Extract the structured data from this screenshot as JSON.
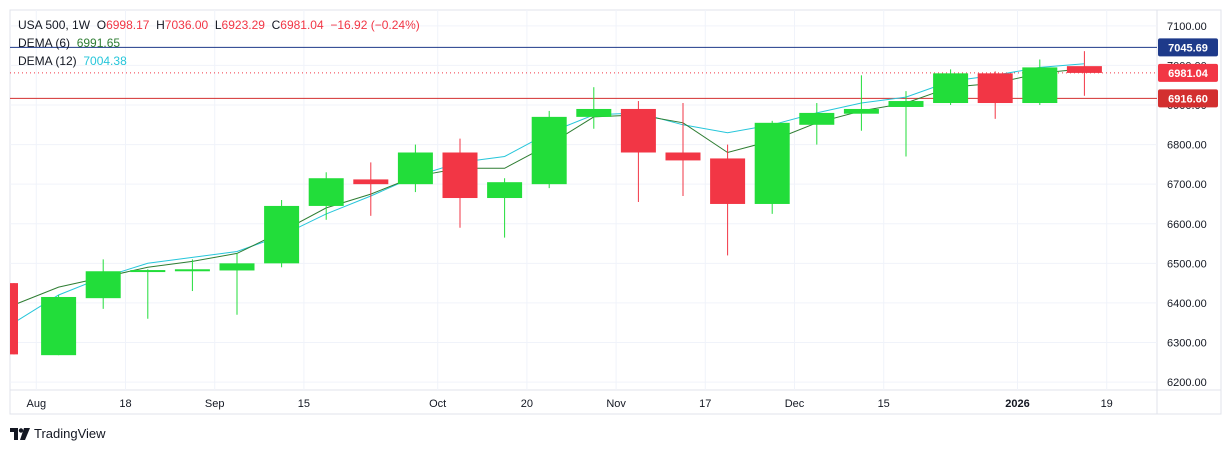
{
  "header": {
    "symbol": "USA 500",
    "interval": "1W",
    "open_label": "O",
    "open": "6998.17",
    "high_label": "H",
    "high": "7036.00",
    "low_label": "L",
    "low": "6923.29",
    "close_label": "C",
    "close": "6981.04",
    "change": "−16.92 (−0.24%)"
  },
  "indicators": [
    {
      "name": "DEMA (6)",
      "value": "6991.65",
      "color": "#2e7d32"
    },
    {
      "name": "DEMA (12)",
      "value": "7004.38",
      "color": "#26c6da"
    }
  ],
  "brand": "TradingView",
  "colors": {
    "up": "#22dd3a",
    "down": "#f23645",
    "blue_line": "#1e3a8a",
    "red_line": "#d32f2f"
  },
  "chart_data": {
    "type": "candlestick",
    "y_ticks": [
      "6200.00",
      "6300.00",
      "6400.00",
      "6500.00",
      "6600.00",
      "6700.00",
      "6800.00",
      "6900.00",
      "7000.00",
      "7100.00"
    ],
    "x_ticks": [
      {
        "label": "Aug",
        "index": 0.5
      },
      {
        "label": "18",
        "index": 2.5
      },
      {
        "label": "Sep",
        "index": 4.5
      },
      {
        "label": "15",
        "index": 6.5
      },
      {
        "label": "Oct",
        "index": 9.5
      },
      {
        "label": "20",
        "index": 11.5
      },
      {
        "label": "Nov",
        "index": 13.5
      },
      {
        "label": "17",
        "index": 15.5
      },
      {
        "label": "Dec",
        "index": 17.5
      },
      {
        "label": "15",
        "index": 19.5
      },
      {
        "label": "2026",
        "index": 22.5,
        "bold": true
      },
      {
        "label": "19",
        "index": 24.5
      }
    ],
    "ylim": [
      6180,
      7140
    ],
    "price_tags": [
      {
        "value": 7045.69,
        "label": "7045.69",
        "color": "#1e3a8a",
        "style": "solid"
      },
      {
        "value": 6981.04,
        "label": "6981.04",
        "color": "#f23645",
        "style": "dotted"
      },
      {
        "value": 6916.6,
        "label": "6916.60",
        "color": "#d32f2f",
        "style": "solid"
      }
    ],
    "candles": [
      {
        "o": 6450,
        "h": 6450,
        "l": 6270,
        "c": 6270
      },
      {
        "o": 6268,
        "h": 6420,
        "l": 6268,
        "c": 6415
      },
      {
        "o": 6412,
        "h": 6510,
        "l": 6385,
        "c": 6480
      },
      {
        "o": 6478,
        "h": 6485,
        "l": 6360,
        "c": 6483
      },
      {
        "o": 6480,
        "h": 6510,
        "l": 6430,
        "c": 6485
      },
      {
        "o": 6482,
        "h": 6525,
        "l": 6370,
        "c": 6500
      },
      {
        "o": 6500,
        "h": 6660,
        "l": 6490,
        "c": 6645
      },
      {
        "o": 6645,
        "h": 6730,
        "l": 6610,
        "c": 6715
      },
      {
        "o": 6712,
        "h": 6755,
        "l": 6620,
        "c": 6700
      },
      {
        "o": 6700,
        "h": 6800,
        "l": 6680,
        "c": 6780
      },
      {
        "o": 6780,
        "h": 6815,
        "l": 6590,
        "c": 6665
      },
      {
        "o": 6665,
        "h": 6715,
        "l": 6565,
        "c": 6705
      },
      {
        "o": 6700,
        "h": 6885,
        "l": 6690,
        "c": 6870
      },
      {
        "o": 6870,
        "h": 6945,
        "l": 6840,
        "c": 6890
      },
      {
        "o": 6890,
        "h": 6910,
        "l": 6655,
        "c": 6780
      },
      {
        "o": 6780,
        "h": 6905,
        "l": 6670,
        "c": 6760
      },
      {
        "o": 6765,
        "h": 6800,
        "l": 6520,
        "c": 6650
      },
      {
        "o": 6650,
        "h": 6860,
        "l": 6625,
        "c": 6855
      },
      {
        "o": 6850,
        "h": 6905,
        "l": 6800,
        "c": 6880
      },
      {
        "o": 6878,
        "h": 6975,
        "l": 6835,
        "c": 6890
      },
      {
        "o": 6895,
        "h": 6935,
        "l": 6770,
        "c": 6910
      },
      {
        "o": 6905,
        "h": 6990,
        "l": 6900,
        "c": 6980
      },
      {
        "o": 6980,
        "h": 6985,
        "l": 6865,
        "c": 6905
      },
      {
        "o": 6905,
        "h": 7015,
        "l": 6900,
        "c": 6995
      },
      {
        "o": 6998.17,
        "h": 7036,
        "l": 6923.29,
        "c": 6981.04
      }
    ],
    "dema6": [
      6395,
      6440,
      6465,
      6490,
      6505,
      6525,
      6580,
      6640,
      6675,
      6720,
      6740,
      6740,
      6800,
      6870,
      6875,
      6855,
      6780,
      6810,
      6855,
      6885,
      6905,
      6945,
      6955,
      6980,
      6992
    ],
    "dema12": [
      6350,
      6420,
      6465,
      6500,
      6515,
      6530,
      6570,
      6625,
      6670,
      6720,
      6755,
      6770,
      6830,
      6875,
      6880,
      6850,
      6830,
      6850,
      6880,
      6905,
      6920,
      6960,
      6975,
      6995,
      7004
    ]
  }
}
